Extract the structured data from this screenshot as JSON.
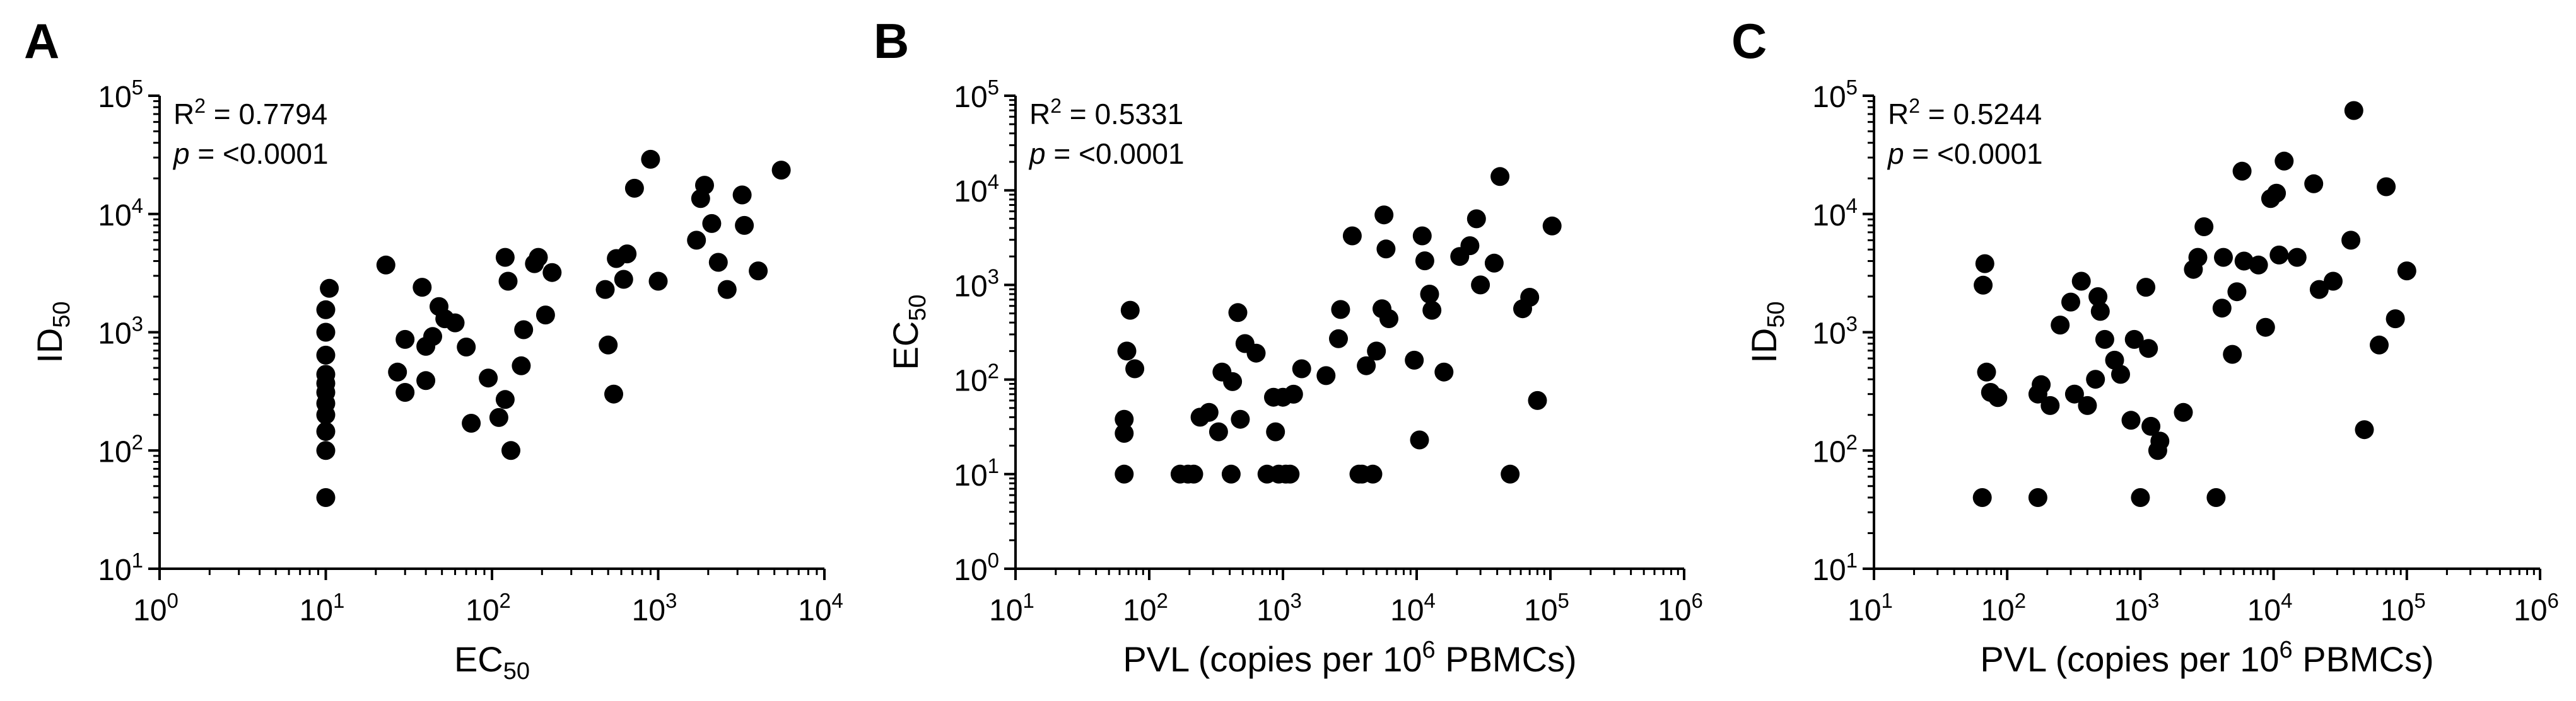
{
  "colors": {
    "points": "#000000",
    "axes": "#000000",
    "background": "#ffffff"
  },
  "chart_data": [
    {
      "panel": "A",
      "type": "scatter",
      "xscale": "log",
      "yscale": "log",
      "xlim": [
        1,
        10000
      ],
      "ylim": [
        10,
        100000
      ],
      "x_ticks": [
        {
          "base": "10",
          "exp": "0"
        },
        {
          "base": "10",
          "exp": "1"
        },
        {
          "base": "10",
          "exp": "2"
        },
        {
          "base": "10",
          "exp": "3"
        },
        {
          "base": "10",
          "exp": "4"
        }
      ],
      "y_ticks": [
        {
          "base": "10",
          "exp": "1"
        },
        {
          "base": "10",
          "exp": "2"
        },
        {
          "base": "10",
          "exp": "3"
        },
        {
          "base": "10",
          "exp": "4"
        },
        {
          "base": "10",
          "exp": "5"
        }
      ],
      "xlabel": {
        "main": "EC",
        "sub": "50",
        "sup": "",
        "tail": ""
      },
      "ylabel": {
        "main": "ID",
        "sub": "50",
        "sup": "",
        "tail": ""
      },
      "stats": {
        "r2": "0.7794",
        "p": "<0.0001"
      },
      "points": [
        [
          10,
          40
        ],
        [
          10,
          100
        ],
        [
          10,
          145
        ],
        [
          10,
          200
        ],
        [
          10,
          250
        ],
        [
          10,
          310
        ],
        [
          10,
          370
        ],
        [
          10,
          440
        ],
        [
          10,
          640
        ],
        [
          10,
          1000
        ],
        [
          10,
          1550
        ],
        [
          10.5,
          2350
        ],
        [
          23,
          3700
        ],
        [
          27,
          460
        ],
        [
          30,
          310
        ],
        [
          30,
          870
        ],
        [
          38,
          2400
        ],
        [
          40,
          390
        ],
        [
          40,
          760
        ],
        [
          44,
          920
        ],
        [
          48,
          1650
        ],
        [
          52,
          1300
        ],
        [
          60,
          1200
        ],
        [
          70,
          750
        ],
        [
          75,
          170
        ],
        [
          95,
          410
        ],
        [
          110,
          190
        ],
        [
          120,
          270
        ],
        [
          120,
          4300
        ],
        [
          125,
          2700
        ],
        [
          130,
          100
        ],
        [
          150,
          520
        ],
        [
          155,
          1050
        ],
        [
          180,
          3800
        ],
        [
          190,
          4300
        ],
        [
          210,
          1400
        ],
        [
          230,
          3200
        ],
        [
          480,
          2300
        ],
        [
          500,
          780
        ],
        [
          540,
          300
        ],
        [
          560,
          4200
        ],
        [
          620,
          2800
        ],
        [
          650,
          4600
        ],
        [
          720,
          16500
        ],
        [
          900,
          29000
        ],
        [
          1000,
          2700
        ],
        [
          1700,
          6000
        ],
        [
          1800,
          13500
        ],
        [
          1900,
          17500
        ],
        [
          2100,
          8300
        ],
        [
          2300,
          3900
        ],
        [
          2600,
          2300
        ],
        [
          3200,
          14500
        ],
        [
          3300,
          8000
        ],
        [
          4000,
          3300
        ],
        [
          5500,
          23500
        ]
      ]
    },
    {
      "panel": "B",
      "type": "scatter",
      "xscale": "log",
      "yscale": "log",
      "xlim": [
        10,
        1000000
      ],
      "ylim": [
        1,
        100000
      ],
      "x_ticks": [
        {
          "base": "10",
          "exp": "1"
        },
        {
          "base": "10",
          "exp": "2"
        },
        {
          "base": "10",
          "exp": "3"
        },
        {
          "base": "10",
          "exp": "4"
        },
        {
          "base": "10",
          "exp": "5"
        },
        {
          "base": "10",
          "exp": "6"
        }
      ],
      "y_ticks": [
        {
          "base": "10",
          "exp": "0"
        },
        {
          "base": "10",
          "exp": "1"
        },
        {
          "base": "10",
          "exp": "2"
        },
        {
          "base": "10",
          "exp": "3"
        },
        {
          "base": "10",
          "exp": "4"
        },
        {
          "base": "10",
          "exp": "5"
        }
      ],
      "xlabel": {
        "main": "PVL (copies per 10",
        "sub": "",
        "sup": "6",
        "tail": " PBMCs)"
      },
      "ylabel": {
        "main": "EC",
        "sub": "50",
        "sup": "",
        "tail": ""
      },
      "stats": {
        "r2": "0.5331",
        "p": "<0.0001"
      },
      "points": [
        [
          65,
          10
        ],
        [
          65,
          38
        ],
        [
          65,
          27
        ],
        [
          68,
          200
        ],
        [
          72,
          540
        ],
        [
          78,
          130
        ],
        [
          170,
          10
        ],
        [
          195,
          10
        ],
        [
          215,
          10
        ],
        [
          240,
          40
        ],
        [
          280,
          45
        ],
        [
          330,
          28
        ],
        [
          350,
          120
        ],
        [
          410,
          10
        ],
        [
          420,
          95
        ],
        [
          460,
          510
        ],
        [
          480,
          38
        ],
        [
          520,
          240
        ],
        [
          630,
          190
        ],
        [
          760,
          10
        ],
        [
          850,
          65
        ],
        [
          880,
          28
        ],
        [
          930,
          10
        ],
        [
          1000,
          65
        ],
        [
          1050,
          10
        ],
        [
          1130,
          10
        ],
        [
          1200,
          70
        ],
        [
          1380,
          130
        ],
        [
          2100,
          110
        ],
        [
          2600,
          270
        ],
        [
          2700,
          550
        ],
        [
          3300,
          3300
        ],
        [
          3700,
          10
        ],
        [
          3900,
          10
        ],
        [
          4200,
          140
        ],
        [
          4700,
          10
        ],
        [
          5000,
          200
        ],
        [
          5500,
          560
        ],
        [
          5700,
          5500
        ],
        [
          5900,
          2400
        ],
        [
          6200,
          440
        ],
        [
          9600,
          160
        ],
        [
          10500,
          23
        ],
        [
          11000,
          3300
        ],
        [
          11500,
          1800
        ],
        [
          12500,
          800
        ],
        [
          13000,
          540
        ],
        [
          16000,
          120
        ],
        [
          21000,
          2000
        ],
        [
          25000,
          2600
        ],
        [
          28000,
          5000
        ],
        [
          30000,
          1000
        ],
        [
          38000,
          1700
        ],
        [
          42000,
          14000
        ],
        [
          50000,
          10
        ],
        [
          62000,
          560
        ],
        [
          70000,
          740
        ],
        [
          80000,
          60
        ],
        [
          103000,
          4200
        ]
      ]
    },
    {
      "panel": "C",
      "type": "scatter",
      "xscale": "log",
      "yscale": "log",
      "xlim": [
        10,
        1000000
      ],
      "ylim": [
        10,
        100000
      ],
      "x_ticks": [
        {
          "base": "10",
          "exp": "1"
        },
        {
          "base": "10",
          "exp": "2"
        },
        {
          "base": "10",
          "exp": "3"
        },
        {
          "base": "10",
          "exp": "4"
        },
        {
          "base": "10",
          "exp": "5"
        },
        {
          "base": "10",
          "exp": "6"
        }
      ],
      "y_ticks": [
        {
          "base": "10",
          "exp": "1"
        },
        {
          "base": "10",
          "exp": "2"
        },
        {
          "base": "10",
          "exp": "3"
        },
        {
          "base": "10",
          "exp": "4"
        },
        {
          "base": "10",
          "exp": "5"
        }
      ],
      "xlabel": {
        "main": "PVL (copies per 10",
        "sub": "",
        "sup": "6",
        "tail": " PBMCs)"
      },
      "ylabel": {
        "main": "ID",
        "sub": "50",
        "sup": "",
        "tail": ""
      },
      "stats": {
        "r2": "0.5244",
        "p": "<0.0001"
      },
      "points": [
        [
          65,
          40
        ],
        [
          66,
          2500
        ],
        [
          68,
          3800
        ],
        [
          70,
          460
        ],
        [
          75,
          310
        ],
        [
          85,
          280
        ],
        [
          170,
          40
        ],
        [
          170,
          300
        ],
        [
          180,
          360
        ],
        [
          210,
          240
        ],
        [
          250,
          1150
        ],
        [
          300,
          1800
        ],
        [
          320,
          300
        ],
        [
          360,
          2700
        ],
        [
          400,
          240
        ],
        [
          460,
          400
        ],
        [
          480,
          2000
        ],
        [
          500,
          1500
        ],
        [
          540,
          870
        ],
        [
          640,
          580
        ],
        [
          710,
          440
        ],
        [
          850,
          180
        ],
        [
          900,
          870
        ],
        [
          1000,
          40
        ],
        [
          1100,
          2400
        ],
        [
          1150,
          730
        ],
        [
          1200,
          160
        ],
        [
          1400,
          120
        ],
        [
          1350,
          100
        ],
        [
          2100,
          210
        ],
        [
          2500,
          3400
        ],
        [
          2700,
          4300
        ],
        [
          3000,
          7800
        ],
        [
          3700,
          40
        ],
        [
          4100,
          1600
        ],
        [
          4200,
          4300
        ],
        [
          4900,
          650
        ],
        [
          5300,
          2200
        ],
        [
          5800,
          23000
        ],
        [
          6000,
          4000
        ],
        [
          7700,
          3700
        ],
        [
          8700,
          1100
        ],
        [
          9500,
          13500
        ],
        [
          10500,
          15000
        ],
        [
          11000,
          4500
        ],
        [
          12000,
          28000
        ],
        [
          15000,
          4300
        ],
        [
          20000,
          18000
        ],
        [
          22000,
          2300
        ],
        [
          28000,
          2700
        ],
        [
          38000,
          6000
        ],
        [
          40000,
          75000
        ],
        [
          48000,
          150
        ],
        [
          62000,
          780
        ],
        [
          70000,
          17000
        ],
        [
          82000,
          1300
        ],
        [
          100000,
          3300
        ]
      ]
    }
  ]
}
